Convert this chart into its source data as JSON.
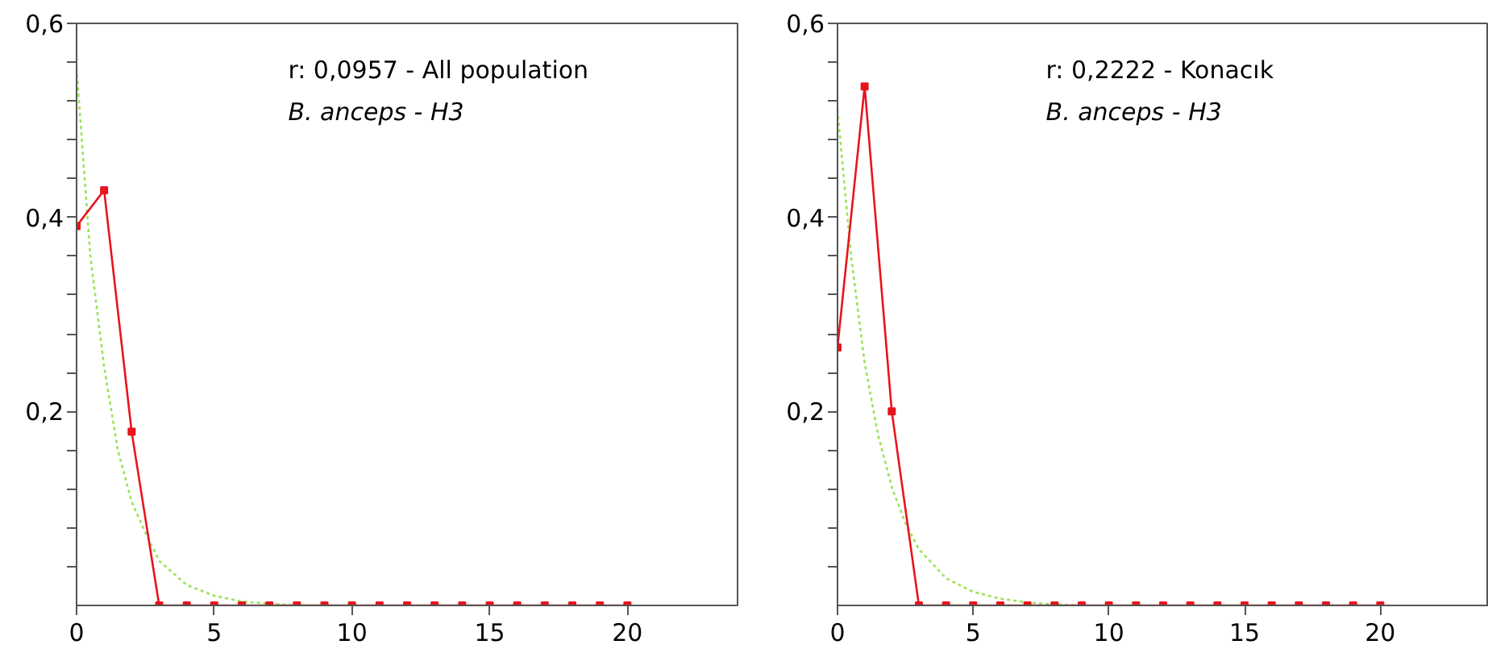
{
  "chart_data": [
    {
      "type": "line",
      "xlim": [
        0,
        24
      ],
      "ylim": [
        0,
        0.6
      ],
      "xticks": [
        0,
        5,
        10,
        15,
        20
      ],
      "yticks": [
        {
          "value": 0.04,
          "label": null
        },
        {
          "value": 0.08,
          "label": null
        },
        {
          "value": 0.12,
          "label": null
        },
        {
          "value": 0.16,
          "label": null
        },
        {
          "value": 0.2,
          "label": "0,2"
        },
        {
          "value": 0.24,
          "label": null
        },
        {
          "value": 0.28,
          "label": null
        },
        {
          "value": 0.32,
          "label": null
        },
        {
          "value": 0.36,
          "label": null
        },
        {
          "value": 0.4,
          "label": "0,4"
        },
        {
          "value": 0.44,
          "label": null
        },
        {
          "value": 0.48,
          "label": null
        },
        {
          "value": 0.52,
          "label": null
        },
        {
          "value": 0.56,
          "label": null
        },
        {
          "value": 0.6,
          "label": "0,6"
        }
      ],
      "grid": false,
      "annotations": [
        "r: 0,0957 - All population",
        "B. anceps - H3"
      ],
      "series": [
        {
          "color": "#9be35a",
          "line_style": "dotted",
          "marker": "none",
          "x": [
            0,
            0.5,
            1,
            1.5,
            2,
            2.5,
            3,
            4,
            5,
            6,
            7,
            8,
            9
          ],
          "values": [
            0.554,
            0.36,
            0.246,
            0.16,
            0.107,
            0.075,
            0.046,
            0.021,
            0.01,
            0.004,
            0.002,
            0,
            0
          ]
        },
        {
          "color": "#e8141c",
          "line_style": "solid",
          "marker": "square",
          "x": [
            0,
            1,
            2,
            3,
            4,
            5,
            6,
            7,
            8,
            9,
            10,
            11,
            12,
            13,
            14,
            15,
            16,
            17,
            18,
            19,
            20
          ],
          "values": [
            0.391,
            0.428,
            0.179,
            0,
            0,
            0,
            0,
            0,
            0,
            0,
            0,
            0,
            0,
            0,
            0,
            0,
            0,
            0,
            0,
            0,
            0
          ]
        }
      ]
    },
    {
      "type": "line",
      "xlim": [
        0,
        24
      ],
      "ylim": [
        0,
        0.6
      ],
      "xticks": [
        0,
        5,
        10,
        15,
        20
      ],
      "yticks": [
        {
          "value": 0.04,
          "label": null
        },
        {
          "value": 0.08,
          "label": null
        },
        {
          "value": 0.12,
          "label": null
        },
        {
          "value": 0.16,
          "label": null
        },
        {
          "value": 0.2,
          "label": "0,2"
        },
        {
          "value": 0.24,
          "label": null
        },
        {
          "value": 0.28,
          "label": null
        },
        {
          "value": 0.32,
          "label": null
        },
        {
          "value": 0.36,
          "label": null
        },
        {
          "value": 0.4,
          "label": "0,4"
        },
        {
          "value": 0.44,
          "label": null
        },
        {
          "value": 0.48,
          "label": null
        },
        {
          "value": 0.52,
          "label": null
        },
        {
          "value": 0.56,
          "label": null
        },
        {
          "value": 0.6,
          "label": "0,6"
        }
      ],
      "grid": false,
      "annotations": [
        "r: 0,2222 - Konacık",
        "B. anceps - H3"
      ],
      "series": [
        {
          "color": "#9be35a",
          "line_style": "dotted",
          "marker": "none",
          "x": [
            0,
            0.5,
            1,
            1.5,
            2,
            2.5,
            3,
            4,
            5,
            6,
            7,
            8,
            9
          ],
          "values": [
            0.511,
            0.36,
            0.25,
            0.175,
            0.122,
            0.085,
            0.058,
            0.028,
            0.014,
            0.007,
            0.003,
            0.001,
            0
          ]
        },
        {
          "color": "#e8141c",
          "line_style": "solid",
          "marker": "square",
          "x": [
            0,
            1,
            2,
            3,
            4,
            5,
            6,
            7,
            8,
            9,
            10,
            11,
            12,
            13,
            14,
            15,
            16,
            17,
            18,
            19,
            20
          ],
          "values": [
            0.266,
            0.535,
            0.2,
            0,
            0,
            0,
            0,
            0,
            0,
            0,
            0,
            0,
            0,
            0,
            0,
            0,
            0,
            0,
            0,
            0,
            0
          ]
        }
      ]
    }
  ]
}
